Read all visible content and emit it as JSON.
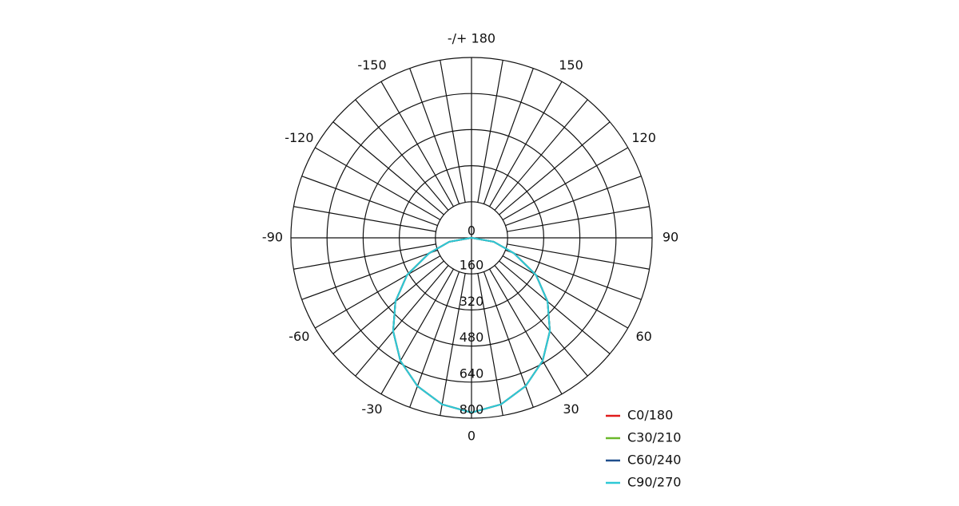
{
  "chart_data": {
    "type": "polar",
    "x": [
      -90,
      -80,
      -70,
      -60,
      -50,
      -40,
      -30,
      -20,
      -10,
      0,
      10,
      20,
      30,
      40,
      50,
      60,
      70,
      80,
      90
    ],
    "series": [
      {
        "name": "C0/180",
        "color": "#e01b1b",
        "values": [
          0,
          100,
          200,
          330,
          440,
          540,
          630,
          700,
          750,
          775,
          750,
          700,
          630,
          540,
          440,
          330,
          200,
          100,
          0
        ]
      },
      {
        "name": "C30/210",
        "color": "#6ab82a",
        "values": [
          0,
          100,
          200,
          330,
          440,
          540,
          630,
          700,
          750,
          775,
          750,
          700,
          630,
          540,
          440,
          330,
          200,
          100,
          0
        ]
      },
      {
        "name": "C60/240",
        "color": "#1f4e8c",
        "values": [
          0,
          100,
          200,
          330,
          440,
          540,
          630,
          700,
          750,
          775,
          750,
          700,
          630,
          540,
          440,
          330,
          200,
          100,
          0
        ]
      },
      {
        "name": "C90/270",
        "color": "#2ec9d6",
        "values": [
          0,
          100,
          200,
          330,
          440,
          540,
          630,
          700,
          750,
          775,
          750,
          700,
          630,
          540,
          440,
          330,
          200,
          100,
          0
        ]
      }
    ],
    "xticks": [
      0,
      30,
      60,
      90,
      120,
      150,
      {
        "value": 180,
        "label": "-/+ 180"
      },
      -150,
      -120,
      -90,
      -60,
      -30
    ],
    "ylim": [
      0,
      800
    ],
    "yticks": [
      0,
      160,
      320,
      480,
      640,
      800
    ],
    "grid": true
  }
}
